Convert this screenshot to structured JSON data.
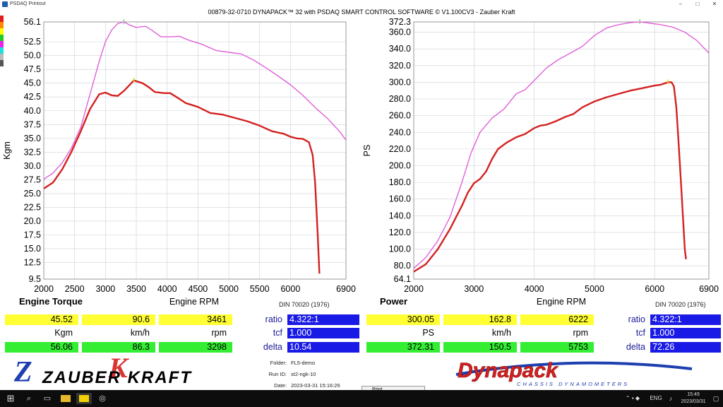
{
  "window": {
    "app_title": "PSDAQ Printout",
    "main_title": "00879-32-0710 DYNAPACK™ 32 with PSDAQ SMART CONTROL SOFTWARE © V1.100CV3 - Zauber Kraft",
    "minimize": "–",
    "maximize": "□",
    "close": "✕"
  },
  "swatch_colors": [
    "#e51c1c",
    "#ff8800",
    "#ffff00",
    "#22cc22",
    "#ee22ee",
    "#22dddd",
    "#bbbbbb",
    "#555555"
  ],
  "chart_data": [
    {
      "type": "line",
      "title": "Engine Torque",
      "xlabel": "Engine RPM",
      "ylabel": "Kgm",
      "standard": "DIN 70020 (1976)",
      "xlim": [
        2000,
        6900
      ],
      "ylim": [
        9.5,
        56.1
      ],
      "x_ticks": [
        "2000",
        "2500",
        "3000",
        "3500",
        "4000",
        "4500",
        "5000",
        "5500",
        "6000",
        "6900"
      ],
      "y_ticks": [
        "56.1",
        "52.5",
        "50.0",
        "47.5",
        "45.0",
        "42.5",
        "40.0",
        "37.5",
        "35.0",
        "32.5",
        "30.0",
        "27.5",
        "25.0",
        "22.5",
        "20.0",
        "17.5",
        "15.0",
        "12.5",
        "9.5"
      ],
      "grid": true,
      "series": [
        {
          "color": "#d42121",
          "points": [
            [
              2000,
              25.9
            ],
            [
              2150,
              27.0
            ],
            [
              2300,
              29.4
            ],
            [
              2450,
              32.6
            ],
            [
              2600,
              36.3
            ],
            [
              2750,
              40.3
            ],
            [
              2900,
              43.0
            ],
            [
              3000,
              43.3
            ],
            [
              3100,
              42.8
            ],
            [
              3200,
              42.7
            ],
            [
              3300,
              43.6
            ],
            [
              3461,
              45.5
            ],
            [
              3600,
              45.0
            ],
            [
              3700,
              44.3
            ],
            [
              3800,
              43.4
            ],
            [
              3950,
              43.2
            ],
            [
              4050,
              43.2
            ],
            [
              4150,
              42.5
            ],
            [
              4300,
              41.4
            ],
            [
              4500,
              40.7
            ],
            [
              4700,
              39.6
            ],
            [
              4900,
              39.3
            ],
            [
              5100,
              38.7
            ],
            [
              5300,
              38.1
            ],
            [
              5500,
              37.3
            ],
            [
              5700,
              36.3
            ],
            [
              5900,
              35.8
            ],
            [
              6000,
              35.3
            ],
            [
              6100,
              35.0
            ],
            [
              6200,
              34.9
            ],
            [
              6300,
              34.3
            ],
            [
              6360,
              32.0
            ],
            [
              6400,
              27.0
            ],
            [
              6440,
              18.0
            ],
            [
              6470,
              10.5
            ]
          ]
        },
        {
          "color": "#e060d8",
          "points": [
            [
              2000,
              27.6
            ],
            [
              2150,
              28.7
            ],
            [
              2300,
              30.6
            ],
            [
              2450,
              33.3
            ],
            [
              2600,
              37.0
            ],
            [
              2700,
              41.0
            ],
            [
              2800,
              45.0
            ],
            [
              2900,
              49.0
            ],
            [
              3000,
              52.5
            ],
            [
              3100,
              54.6
            ],
            [
              3200,
              55.8
            ],
            [
              3298,
              56.1
            ],
            [
              3400,
              55.5
            ],
            [
              3500,
              55.1
            ],
            [
              3650,
              55.3
            ],
            [
              3750,
              54.6
            ],
            [
              3900,
              53.4
            ],
            [
              4050,
              53.4
            ],
            [
              4200,
              53.5
            ],
            [
              4350,
              52.8
            ],
            [
              4550,
              52.1
            ],
            [
              4800,
              50.9
            ],
            [
              5000,
              50.6
            ],
            [
              5200,
              50.3
            ],
            [
              5400,
              49.2
            ],
            [
              5600,
              47.8
            ],
            [
              5800,
              46.3
            ],
            [
              6000,
              44.7
            ],
            [
              6200,
              42.8
            ],
            [
              6400,
              40.6
            ],
            [
              6600,
              38.6
            ],
            [
              6800,
              36.2
            ],
            [
              6900,
              34.7
            ]
          ]
        }
      ],
      "markers": [
        {
          "color": "#ccee22",
          "x": 3461,
          "y": 45.52
        },
        {
          "color": "#88cc99",
          "x": 3298,
          "y": 56.06
        }
      ]
    },
    {
      "type": "line",
      "title": "Power",
      "xlabel": "Engine RPM",
      "ylabel": "PS",
      "standard": "DIN 70020 (1976)",
      "xlim": [
        2000,
        6900
      ],
      "ylim": [
        64.1,
        372.3
      ],
      "x_ticks": [
        "2000",
        "3000",
        "4000",
        "5000",
        "6000",
        "6900"
      ],
      "y_ticks": [
        "372.3",
        "360.0",
        "340.0",
        "320.0",
        "300.0",
        "280.0",
        "260.0",
        "240.0",
        "220.0",
        "200.0",
        "180.0",
        "160.0",
        "140.0",
        "120.0",
        "100.0",
        "80.0",
        "64.1"
      ],
      "grid": true,
      "series": [
        {
          "color": "#d42121",
          "points": [
            [
              2000,
              73.0
            ],
            [
              2200,
              82.0
            ],
            [
              2400,
              100.0
            ],
            [
              2600,
              124.0
            ],
            [
              2800,
              152.0
            ],
            [
              2900,
              168.0
            ],
            [
              3000,
              179.0
            ],
            [
              3100,
              184.0
            ],
            [
              3200,
              193.0
            ],
            [
              3300,
              208.0
            ],
            [
              3400,
              220.0
            ],
            [
              3550,
              228.0
            ],
            [
              3700,
              234.0
            ],
            [
              3850,
              238.0
            ],
            [
              4000,
              245.0
            ],
            [
              4100,
              248.0
            ],
            [
              4200,
              249.0
            ],
            [
              4350,
              253.0
            ],
            [
              4500,
              258.0
            ],
            [
              4650,
              262.0
            ],
            [
              4800,
              270.0
            ],
            [
              5000,
              277.0
            ],
            [
              5200,
              282.0
            ],
            [
              5400,
              286.0
            ],
            [
              5600,
              290.0
            ],
            [
              5800,
              293.0
            ],
            [
              6000,
              296.0
            ],
            [
              6100,
              297.0
            ],
            [
              6222,
              300.0
            ],
            [
              6280,
              300.0
            ],
            [
              6320,
              295.0
            ],
            [
              6360,
              270.0
            ],
            [
              6400,
              225.0
            ],
            [
              6440,
              175.0
            ],
            [
              6480,
              125.0
            ],
            [
              6500,
              100.0
            ],
            [
              6520,
              88.0
            ]
          ]
        },
        {
          "color": "#e060d8",
          "points": [
            [
              2000,
              77.0
            ],
            [
              2200,
              90.0
            ],
            [
              2400,
              110.0
            ],
            [
              2600,
              138.0
            ],
            [
              2800,
              180.0
            ],
            [
              2950,
              215.0
            ],
            [
              3100,
              240.0
            ],
            [
              3300,
              257.0
            ],
            [
              3500,
              268.0
            ],
            [
              3700,
              286.0
            ],
            [
              3850,
              291.0
            ],
            [
              4000,
              302.0
            ],
            [
              4200,
              317.0
            ],
            [
              4400,
              327.0
            ],
            [
              4600,
              335.0
            ],
            [
              4800,
              343.0
            ],
            [
              5000,
              356.0
            ],
            [
              5200,
              365.0
            ],
            [
              5400,
              369.0
            ],
            [
              5600,
              371.5
            ],
            [
              5753,
              372.3
            ],
            [
              5900,
              371.0
            ],
            [
              6100,
              369.0
            ],
            [
              6300,
              366.0
            ],
            [
              6500,
              360.0
            ],
            [
              6700,
              350.0
            ],
            [
              6900,
              335.0
            ]
          ]
        }
      ],
      "markers": [
        {
          "color": "#ccee22",
          "x": 6222,
          "y": 300.05
        },
        {
          "color": "#88cc99",
          "x": 5753,
          "y": 372.31
        }
      ]
    }
  ],
  "left_panel": {
    "title": "Engine Torque",
    "xlabel": "Engine RPM",
    "ylabel": "Kgm",
    "din": "DIN 70020 (1976)",
    "row1": {
      "torque": "45.52",
      "speed": "90.6",
      "rpm": "3461"
    },
    "units": {
      "a": "Kgm",
      "b": "km/h",
      "c": "rpm"
    },
    "row3": {
      "torque": "56.06",
      "speed": "86.3",
      "rpm": "3298"
    },
    "ratio_label": "ratio",
    "ratio": "4.322:1",
    "tcf_label": "tcf",
    "tcf": "1.000",
    "delta_label": "delta",
    "delta": "10.54"
  },
  "right_panel": {
    "title": "Power",
    "xlabel": "Engine RPM",
    "ylabel": "PS",
    "din": "DIN 70020 (1976)",
    "row1": {
      "power": "300.05",
      "speed": "162.8",
      "rpm": "6222"
    },
    "units": {
      "a": "PS",
      "b": "km/h",
      "c": "rpm"
    },
    "row3": {
      "power": "372.31",
      "speed": "150.5",
      "rpm": "5753"
    },
    "ratio_label": "ratio",
    "ratio": "4.322:1",
    "tcf_label": "tcf",
    "tcf": "1.000",
    "delta_label": "delta",
    "delta": "72.26"
  },
  "run_info": {
    "folder_label": "Folder:",
    "folder": "FL5-demo",
    "runid_label": "Run ID:",
    "runid": "st2-ngk-10",
    "date_label": "Date:",
    "date": "2023-03-31 15:16:26"
  },
  "logos": {
    "zauber_text": "ZAUBER KRAFT",
    "zauber_monogram": "ZK",
    "dynapack_text": "Dynapack",
    "dynapack_sub": "CHASSIS DYNAMOMETERS"
  },
  "taskbar": {
    "print_window": "Print",
    "lang": "ENG",
    "time": "15:49",
    "date": "2023/03/31"
  }
}
